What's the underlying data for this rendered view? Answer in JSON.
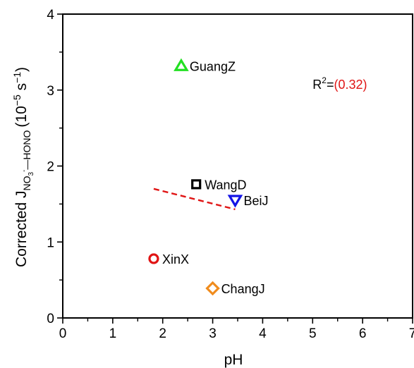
{
  "chart_data": {
    "type": "scatter",
    "title": "",
    "xlabel": "pH",
    "ylabel": {
      "prefix": "Corrected J",
      "sub_a": "NO",
      "sub_a_sub": "3",
      "sub_a_sup": "-",
      "sub_b": "—HONO",
      "units_open": "(10",
      "units_exp": "−5",
      "units_mid": " s",
      "units_exp2": "−1",
      "units_close": ")"
    },
    "xlim": [
      0,
      7
    ],
    "ylim": [
      0,
      4
    ],
    "xticks": [
      "0",
      "1",
      "2",
      "3",
      "4",
      "5",
      "6",
      "7"
    ],
    "yticks": [
      "0",
      "1",
      "2",
      "3",
      "4"
    ],
    "grid": false,
    "points": [
      {
        "name": "GuangZ",
        "x": 2.37,
        "y": 3.32,
        "marker": "triangle-up",
        "color": "#22e022"
      },
      {
        "name": "WangD",
        "x": 2.67,
        "y": 1.76,
        "marker": "square",
        "color": "#000000"
      },
      {
        "name": "BeiJ",
        "x": 3.45,
        "y": 1.55,
        "marker": "triangle-down",
        "color": "#1414e6"
      },
      {
        "name": "XinX",
        "x": 1.82,
        "y": 0.78,
        "marker": "circle",
        "color": "#e01414"
      },
      {
        "name": "ChangJ",
        "x": 3.0,
        "y": 0.39,
        "marker": "diamond",
        "color": "#f08c1e"
      }
    ],
    "fit_line": {
      "x": [
        1.82,
        3.45
      ],
      "y": [
        1.7,
        1.43
      ],
      "color": "#e01414",
      "style": "dashed"
    },
    "annotation": {
      "prefix": "R",
      "sup": "2",
      "eq": "=",
      "value": "(0.32)",
      "value_color": "#e01414",
      "x": 5.0,
      "y": 3.07
    }
  }
}
